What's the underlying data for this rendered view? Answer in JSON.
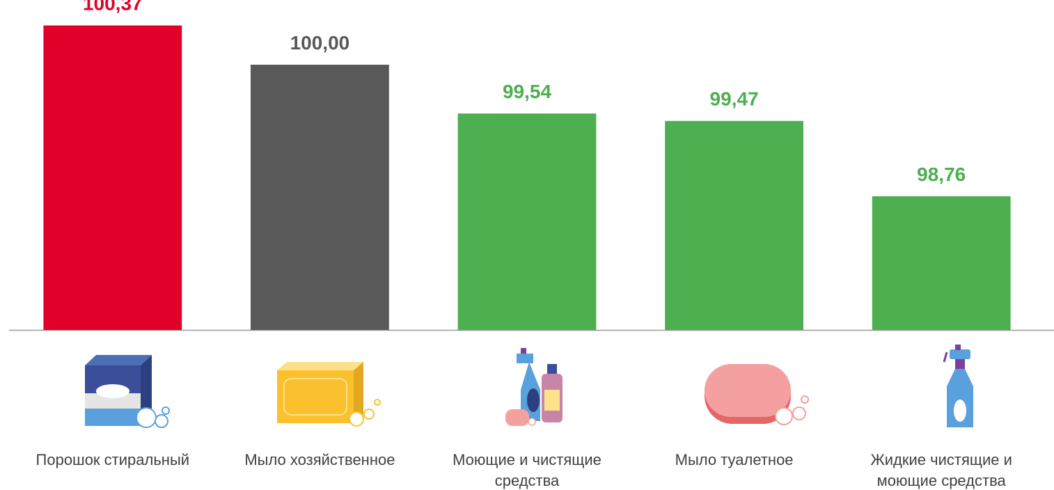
{
  "chart_data": {
    "type": "bar",
    "categories": [
      "Порошок стиральный",
      "Мыло хозяйственное",
      "Моющие и чистящие\nсредства",
      "Мыло туалетное",
      "Жидкие чистящие и\nмоющие средства"
    ],
    "values": [
      100.37,
      100.0,
      99.54,
      99.47,
      98.76
    ],
    "value_labels": [
      "100,37",
      "100,00",
      "99,54",
      "99,47",
      "98,76"
    ],
    "colors": [
      "#e0002a",
      "#595959",
      "#4daf4f",
      "#4daf4f",
      "#4daf4f"
    ],
    "ylim": [
      97.5,
      100.4
    ]
  }
}
